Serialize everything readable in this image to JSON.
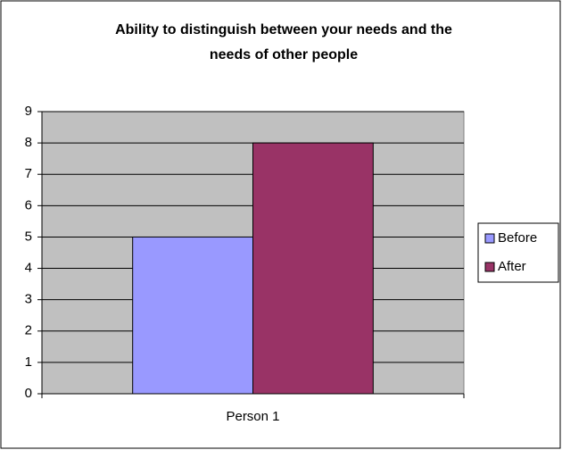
{
  "chart_data": {
    "type": "bar",
    "title": [
      "Ability to distinguish between your needs and the",
      "needs of other people"
    ],
    "categories": [
      "Person 1"
    ],
    "series": [
      {
        "name": "Before",
        "color": "#9999ff",
        "values": [
          5
        ]
      },
      {
        "name": "After",
        "color": "#993366",
        "values": [
          8
        ]
      }
    ],
    "ylim": [
      0,
      9
    ],
    "yticks": [
      0,
      1,
      2,
      3,
      4,
      5,
      6,
      7,
      8,
      9
    ],
    "grid": true,
    "legend": "right"
  }
}
